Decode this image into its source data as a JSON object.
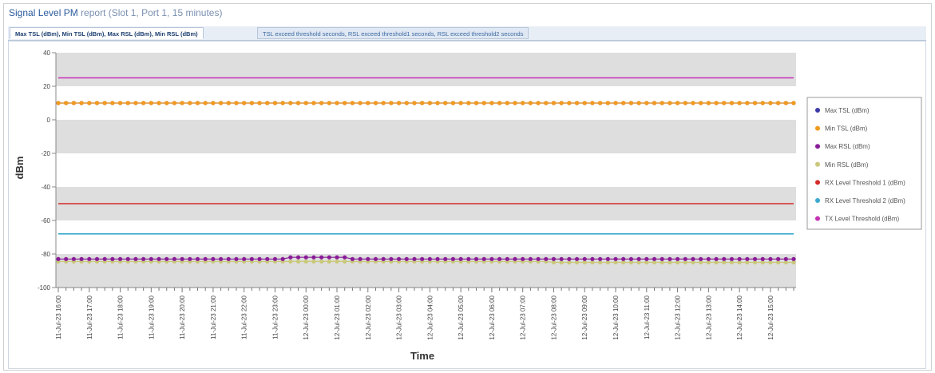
{
  "report": {
    "title_prefix": "Signal Level PM",
    "title_suffix": " report (Slot 1, Port 1, 15 minutes)"
  },
  "tabs": [
    {
      "label": "Max TSL (dBm), Min TSL (dBm), Max RSL (dBm), Min RSL (dBm)",
      "active": true
    },
    {
      "label": "TSL exceed threshold seconds, RSL exceed threshold1 seconds, RSL exceed threshold2 seconds",
      "active": false
    }
  ],
  "chart_data": {
    "type": "line",
    "title": "",
    "xlabel": "Time",
    "ylabel": "dBm",
    "ylim": [
      -100,
      40
    ],
    "yticks": [
      40,
      20,
      0,
      -20,
      -40,
      -60,
      -80,
      -100
    ],
    "grid": "alternating horizontal bands",
    "legend_position": "right",
    "x_start": "11-Jul-23 16:00",
    "x_end": "12-Jul-23 15:45",
    "x_interval_minutes": 15,
    "xtick_labels": [
      "11-Jul-23 16:00",
      "11-Jul-23 17:00",
      "11-Jul-23 18:00",
      "11-Jul-23 19:00",
      "11-Jul-23 20:00",
      "11-Jul-23 21:00",
      "11-Jul-23 22:00",
      "11-Jul-23 23:00",
      "12-Jul-23 00:00",
      "12-Jul-23 01:00",
      "12-Jul-23 02:00",
      "12-Jul-23 03:00",
      "12-Jul-23 04:00",
      "12-Jul-23 05:00",
      "12-Jul-23 06:00",
      "12-Jul-23 07:00",
      "12-Jul-23 08:00",
      "12-Jul-23 09:00",
      "12-Jul-23 10:00",
      "12-Jul-23 11:00",
      "12-Jul-23 12:00",
      "12-Jul-23 13:00",
      "12-Jul-23 14:00",
      "12-Jul-23 15:00"
    ],
    "series": [
      {
        "name": "Max TSL (dBm)",
        "color": "#3a3aa8",
        "markers": true,
        "constant": 10
      },
      {
        "name": "Min TSL (dBm)",
        "color": "#f29a1e",
        "markers": true,
        "constant": 10
      },
      {
        "name": "Max RSL (dBm)",
        "color": "#8a1a9a",
        "markers": true,
        "base": -83,
        "overrides": [
          {
            "from": "11-Jul-23 23:30",
            "to": "12-Jul-23 01:15",
            "value": -82
          }
        ]
      },
      {
        "name": "Min RSL (dBm)",
        "color": "#c9c87a",
        "markers": true,
        "base": -84.5,
        "overrides": [
          {
            "from": "12-Jul-23 08:00",
            "to": "12-Jul-23 15:45",
            "value": -85
          }
        ]
      },
      {
        "name": "RX Level Threshold 1 (dBm)",
        "color": "#d42a2a",
        "markers": false,
        "constant": -50
      },
      {
        "name": "RX Level Threshold 2 (dBm)",
        "color": "#3aaad0",
        "markers": false,
        "constant": -68
      },
      {
        "name": "TX Level Threshold (dBm)",
        "color": "#c531b5",
        "markers": false,
        "constant": 25
      }
    ]
  }
}
